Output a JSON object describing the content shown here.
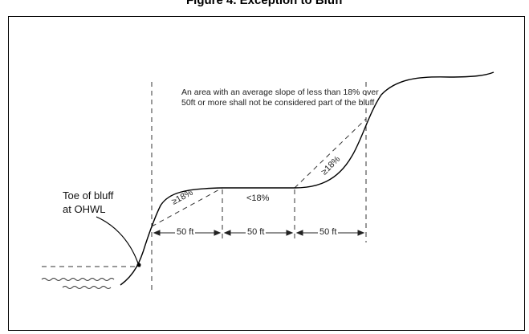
{
  "figure": {
    "title": "Figure 4. Exception to Bluff"
  },
  "annotations": {
    "note": "An area with an average slope of less than 18% over 50ft or more shall not be considered part of the bluff.",
    "toe_line1": "Toe of bluff",
    "toe_line2": "at  OHWL",
    "slope_left": "≥18%",
    "slope_middle": "<18%",
    "slope_right": "≥18%",
    "dim_1": "50 ft",
    "dim_2": "50 ft",
    "dim_3": "50 ft"
  },
  "colors": {
    "line": "#000000",
    "dashed": "#333333",
    "text": "#222222"
  }
}
